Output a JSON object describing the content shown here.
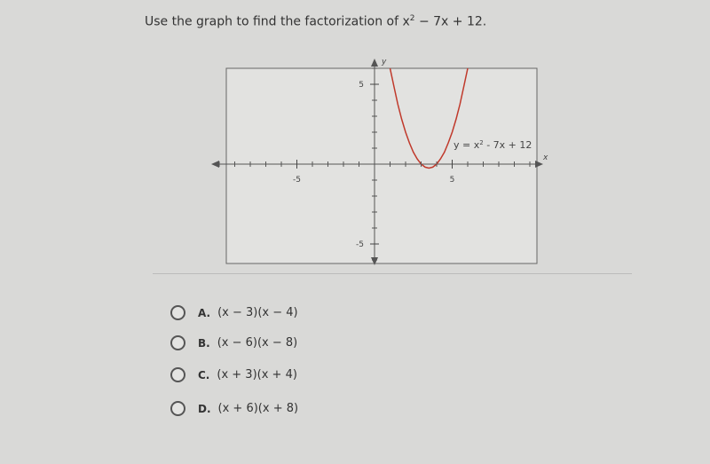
{
  "question": [
    "Use the graph to find the factorization of x",
    "2",
    " − 7x + 12."
  ],
  "graph": {
    "x_axis_label": "x",
    "y_axis_label": "y",
    "x_ticks": [
      -5,
      5
    ],
    "y_ticks": [
      5,
      -5
    ],
    "curve_label": [
      "y = x",
      "2",
      " - 7x + 12"
    ]
  },
  "choices": [
    {
      "letter": "A.",
      "text": "(x − 3)(x − 4)"
    },
    {
      "letter": "B.",
      "text": "(x − 6)(x − 8)"
    },
    {
      "letter": "C.",
      "text": "(x + 3)(x + 4)"
    },
    {
      "letter": "D.",
      "text": "(x + 6)(x + 8)"
    }
  ]
}
